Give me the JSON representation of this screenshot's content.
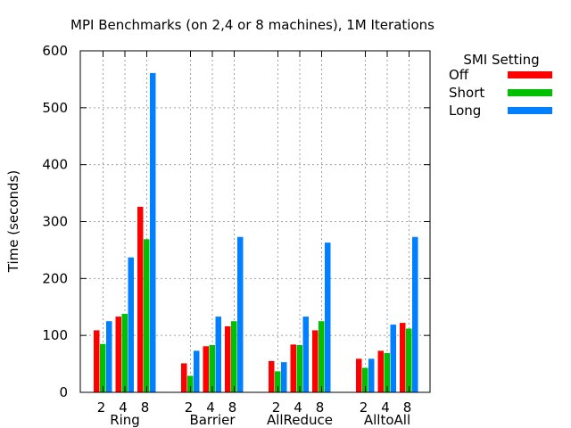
{
  "chart_data": {
    "type": "bar",
    "title": "MPI Benchmarks (on 2,4 or 8 machines), 1M Iterations",
    "xlabel": "",
    "ylabel": "Time (seconds)",
    "ylim": [
      0,
      600
    ],
    "yticks": [
      0,
      100,
      200,
      300,
      400,
      500,
      600
    ],
    "grid": true,
    "legend_title": "SMI Setting",
    "legend_position": "outside-right",
    "groups": [
      "Ring",
      "Barrier",
      "AllReduce",
      "AlltoAll"
    ],
    "machines": [
      "2",
      "4",
      "8"
    ],
    "series": [
      {
        "name": "Off",
        "color": "#ff0000",
        "values": [
          [
            109,
            133,
            326
          ],
          [
            51,
            81,
            116
          ],
          [
            55,
            84,
            109
          ],
          [
            59,
            73,
            122
          ]
        ]
      },
      {
        "name": "Short",
        "color": "#00c000",
        "values": [
          [
            85,
            138,
            269
          ],
          [
            29,
            83,
            125
          ],
          [
            37,
            83,
            125
          ],
          [
            43,
            69,
            112
          ]
        ]
      },
      {
        "name": "Long",
        "color": "#0080ff",
        "values": [
          [
            125,
            237,
            561
          ],
          [
            73,
            133,
            273
          ],
          [
            53,
            133,
            263
          ],
          [
            59,
            119,
            273
          ]
        ]
      }
    ]
  }
}
